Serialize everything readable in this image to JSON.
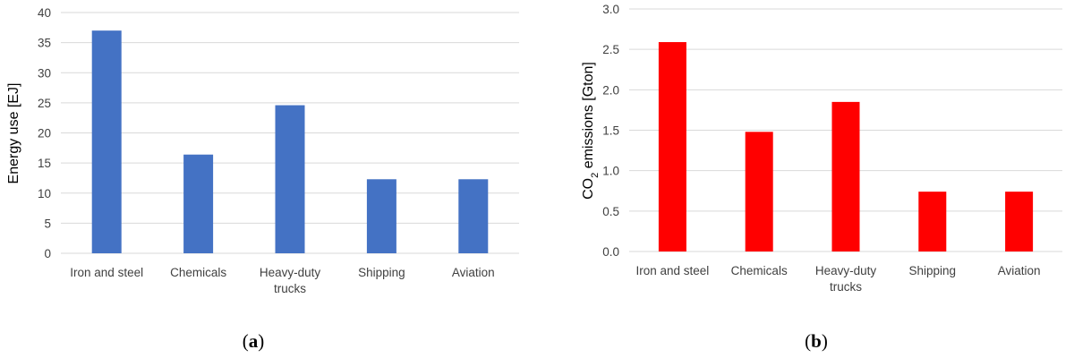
{
  "chart_data": [
    {
      "type": "bar",
      "panel": "a",
      "caption": "a",
      "categories": [
        "Iron and steel",
        "Chemicals",
        "Heavy-duty trucks",
        "Shipping",
        "Aviation"
      ],
      "category_lines": [
        [
          "Iron and steel"
        ],
        [
          "Chemicals"
        ],
        [
          "Heavy-duty",
          "trucks"
        ],
        [
          "Shipping"
        ],
        [
          "Aviation"
        ]
      ],
      "values": [
        37,
        16.4,
        24.6,
        12.3,
        12.3
      ],
      "ylabel": "Energy use [EJ]",
      "xlabel": "",
      "ylim": [
        0,
        40
      ],
      "yticks": [
        0,
        5,
        10,
        15,
        20,
        25,
        30,
        35,
        40
      ],
      "ytick_labels": [
        "0",
        "5",
        "10",
        "15",
        "20",
        "25",
        "30",
        "35",
        "40"
      ],
      "grid": true,
      "legend": "none",
      "color": "#4472C4"
    },
    {
      "type": "bar",
      "panel": "b",
      "caption": "b",
      "categories": [
        "Iron and steel",
        "Chemicals",
        "Heavy-duty trucks",
        "Shipping",
        "Aviation"
      ],
      "category_lines": [
        [
          "Iron and steel"
        ],
        [
          "Chemicals"
        ],
        [
          "Heavy-duty",
          "trucks"
        ],
        [
          "Shipping"
        ],
        [
          "Aviation"
        ]
      ],
      "values": [
        2.59,
        1.48,
        1.85,
        0.74,
        0.74
      ],
      "ylabel": "CO2 emissions [Gton]",
      "ylabel_parts": {
        "pre": "CO",
        "sub": "2",
        "post": " emissions [Gton]"
      },
      "xlabel": "",
      "ylim": [
        0,
        3
      ],
      "yticks": [
        0,
        0.5,
        1,
        1.5,
        2,
        2.5,
        3
      ],
      "ytick_labels": [
        "0.0",
        "0.5",
        "1.0",
        "1.5",
        "2.0",
        "2.5",
        "3.0"
      ],
      "grid": true,
      "legend": "none",
      "color": "#FF0000"
    }
  ]
}
